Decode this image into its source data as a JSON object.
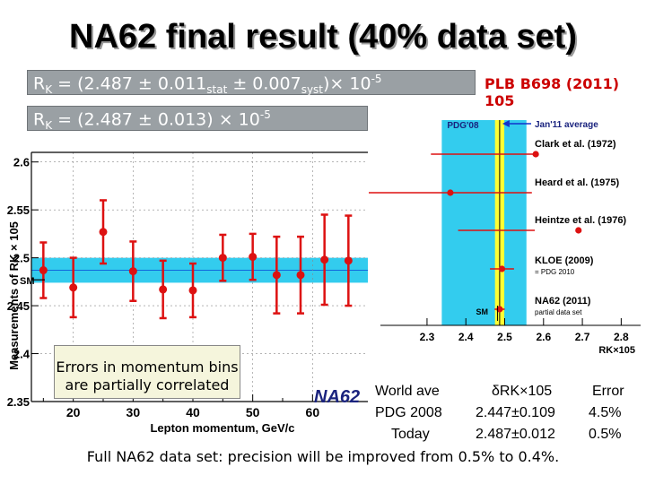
{
  "slide_title": "NA62 final result (40% data set)",
  "rk_line1": {
    "prefix": "R",
    "sub_k": "K",
    "value": " = (2.487 ± 0.011",
    "sub_stat": "stat",
    "mid": " ± 0.007",
    "sub_syst": "syst",
    "suffix": ")× 10",
    "sup": "-5"
  },
  "rk_line2": {
    "prefix": "R",
    "sub_k": "K",
    "value": " = (2.487 ± 0.013) × 10",
    "sup": "-5"
  },
  "plb_reference": "PLB B698 (2011) 105",
  "errors_note": [
    "Errors in momentum bins",
    "are partially correlated"
  ],
  "footer_note": "Full NA62 data set: precision will be improved from 0.5% to 0.4%.",
  "na62_partial_label": "NA62",
  "results_table": {
    "headers": [
      "World ave",
      "δRK×105",
      "Error"
    ],
    "rows": [
      [
        "PDG 2008",
        "2.447±0.109",
        "4.5%"
      ],
      [
        "Today",
        "2.487±0.012",
        "0.5%"
      ]
    ]
  },
  "chart_data": [
    {
      "type": "scatter",
      "title": "",
      "ylabel": "Measurements of RK × 105",
      "xlabel": "Lepton momentum, GeV/c",
      "xlim": [
        13,
        70
      ],
      "ylim": [
        2.35,
        2.61
      ],
      "x_ticks": [
        "20",
        "30",
        "40",
        "50",
        "60"
      ],
      "x_tick_values": [
        20,
        30,
        40,
        50,
        60
      ],
      "y_ticks": [
        "2.35",
        "2.4",
        "2.45",
        "2.5",
        "2.55",
        "2.6"
      ],
      "y_tick_values": [
        2.35,
        2.4,
        2.45,
        2.5,
        2.55,
        2.6
      ],
      "sm_label": "SM",
      "sm_value": 2.477,
      "average_band": [
        2.474,
        2.5
      ],
      "colors": {
        "points": "#dd1111",
        "band": "#33ccee",
        "band_line": "#1166dd"
      },
      "series": [
        {
          "x": [
            15,
            20,
            25,
            30,
            35,
            40,
            45,
            50,
            54,
            58,
            62,
            66
          ],
          "y": [
            2.487,
            2.469,
            2.527,
            2.486,
            2.467,
            2.466,
            2.5,
            2.501,
            2.482,
            2.482,
            2.498,
            2.497
          ],
          "err": [
            0.029,
            0.031,
            0.033,
            0.031,
            0.03,
            0.028,
            0.024,
            0.024,
            0.04,
            0.04,
            0.047,
            0.047
          ]
        }
      ]
    },
    {
      "type": "scatter",
      "title": "",
      "xlabel": "RK×105",
      "xlim": [
        2.18,
        2.85
      ],
      "x_ticks": [
        "2.3",
        "2.4",
        "2.5",
        "2.6",
        "2.7",
        "2.8"
      ],
      "x_tick_values": [
        2.3,
        2.4,
        2.5,
        2.6,
        2.7,
        2.8
      ],
      "pdg_label": "PDG'08",
      "pdg_band": [
        2.338,
        2.556
      ],
      "average_label": "Jan'11 average",
      "average_value": 2.487,
      "average_band": [
        2.475,
        2.499
      ],
      "sm_label": "SM",
      "sm_value": 2.477,
      "colors": {
        "pdg_band": "#33ccee",
        "average_band": "#ffff33",
        "points": "#dd1111",
        "arrow": "#1133cc"
      },
      "measurements": [
        {
          "name": "Clark et al. (1972)",
          "value": 2.58,
          "err": 0.27
        },
        {
          "name": "Heard et al. (1975)",
          "value": 2.36,
          "err": 0.21
        },
        {
          "name": "Heintze et al. (1976)",
          "value": 2.69,
          "err": 0.31
        },
        {
          "name": "KLOE (2009)",
          "note": "= PDG 2010",
          "value": 2.493,
          "err": 0.031
        },
        {
          "name": "NA62 (2011)",
          "note": "partial data set",
          "value": 2.487,
          "err": 0.013
        }
      ]
    }
  ]
}
